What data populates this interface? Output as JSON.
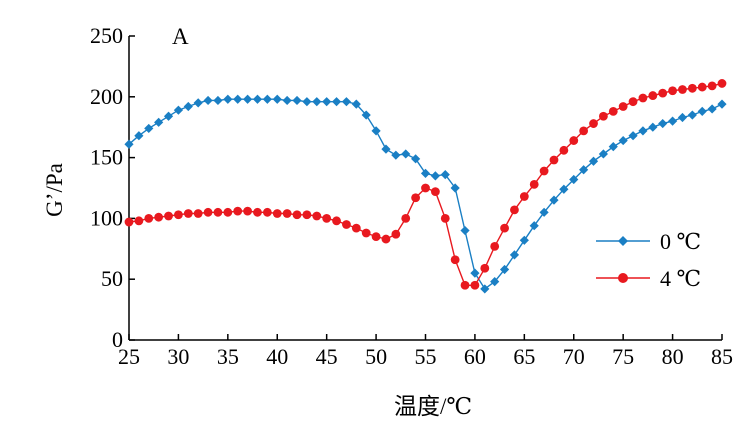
{
  "chart_data": {
    "type": "line",
    "panel_label": "A",
    "xlabel": "温度/℃",
    "ylabel": "G’/Pa",
    "xlim": [
      25,
      85
    ],
    "ylim": [
      0,
      250
    ],
    "x_ticks": [
      25,
      30,
      35,
      40,
      45,
      50,
      55,
      60,
      65,
      70,
      75,
      80,
      85
    ],
    "y_ticks": [
      0,
      50,
      100,
      150,
      200,
      250
    ],
    "grid": false,
    "legend_position": "right",
    "series": [
      {
        "name": "0 ℃",
        "color": "#1a7fc4",
        "marker": "diamond",
        "x": [
          25,
          26,
          27,
          28,
          29,
          30,
          31,
          32,
          33,
          34,
          35,
          36,
          37,
          38,
          39,
          40,
          41,
          42,
          43,
          44,
          45,
          46,
          47,
          48,
          49,
          50,
          51,
          52,
          53,
          54,
          55,
          56,
          57,
          58,
          59,
          60,
          61,
          62,
          63,
          64,
          65,
          66,
          67,
          68,
          69,
          70,
          71,
          72,
          73,
          74,
          75,
          76,
          77,
          78,
          79,
          80,
          81,
          82,
          83,
          84,
          85
        ],
        "y": [
          161,
          168,
          174,
          179,
          184,
          189,
          192,
          195,
          197,
          197,
          198,
          198,
          198,
          198,
          198,
          198,
          197,
          197,
          196,
          196,
          196,
          196,
          196,
          194,
          185,
          172,
          157,
          152,
          153,
          149,
          137,
          135,
          136,
          125,
          90,
          55,
          42,
          48,
          58,
          70,
          82,
          94,
          105,
          115,
          124,
          132,
          140,
          147,
          153,
          159,
          164,
          168,
          172,
          175,
          178,
          180,
          183,
          185,
          188,
          190,
          194
        ]
      },
      {
        "name": "4 ℃",
        "color": "#e8191f",
        "marker": "circle",
        "x": [
          25,
          26,
          27,
          28,
          29,
          30,
          31,
          32,
          33,
          34,
          35,
          36,
          37,
          38,
          39,
          40,
          41,
          42,
          43,
          44,
          45,
          46,
          47,
          48,
          49,
          50,
          51,
          52,
          53,
          54,
          55,
          56,
          57,
          58,
          59,
          60,
          61,
          62,
          63,
          64,
          65,
          66,
          67,
          68,
          69,
          70,
          71,
          72,
          73,
          74,
          75,
          76,
          77,
          78,
          79,
          80,
          81,
          82,
          83,
          84,
          85
        ],
        "y": [
          97,
          98,
          100,
          101,
          102,
          103,
          104,
          104,
          105,
          105,
          105,
          106,
          106,
          105,
          105,
          104,
          104,
          103,
          103,
          102,
          100,
          98,
          95,
          92,
          88,
          85,
          83,
          87,
          100,
          117,
          125,
          122,
          100,
          66,
          45,
          45,
          59,
          77,
          92,
          107,
          118,
          128,
          139,
          148,
          156,
          164,
          172,
          178,
          184,
          188,
          192,
          196,
          199,
          201,
          203,
          205,
          206,
          207,
          208,
          209,
          211
        ]
      }
    ]
  }
}
